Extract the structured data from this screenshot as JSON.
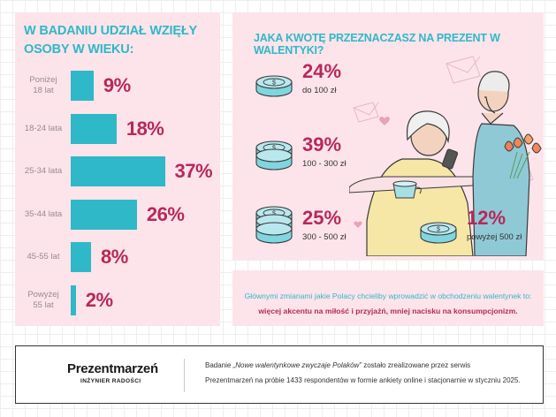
{
  "chart_data": [
    {
      "type": "bar",
      "orientation": "horizontal",
      "title": "W BADANIU UDZIAŁ WZIĘŁY OSOBY W WIEKU:",
      "categories": [
        "Poniżej 18 lat",
        "18-24 lata",
        "25-34 lata",
        "35-44 lata",
        "45-55 lat",
        "Powyżej 55 lat"
      ],
      "category_lines": [
        [
          "Poniżej",
          "18 lat"
        ],
        [
          "18-24 lata"
        ],
        [
          "25-34 lata"
        ],
        [
          "35-44 lata"
        ],
        [
          "45-55 lat"
        ],
        [
          "Powyżej",
          "55 lat"
        ]
      ],
      "values": [
        9,
        18,
        37,
        26,
        8,
        2
      ],
      "value_labels": [
        "9%",
        "18%",
        "37%",
        "26%",
        "8%",
        "2%"
      ],
      "unit": "%",
      "bar_color": "#2fb8c8",
      "label_color": "#b7285b"
    },
    {
      "type": "table",
      "title": "JAKA KWOTĘ PRZEZNACZASZ NA PREZENT W WALENTYKI?",
      "categories": [
        "do 100 zł",
        "100 - 300 zł",
        "300 - 500 zł",
        "powyżej 500 zł"
      ],
      "values": [
        24,
        39,
        25,
        12
      ],
      "value_labels": [
        "24%",
        "39%",
        "25%",
        "12%"
      ],
      "unit": "%"
    }
  ],
  "note": {
    "line1": "Głównymi zmianami jakie Polacy chcieliby wprowadzić w obchodzeniu walentynek to:",
    "line2": "więcej akcentu na miłość i przyjaźń, mniej nacisku na konsumpcjonizm."
  },
  "footer": {
    "brand": "Prezentmarzeń",
    "tagline": "INŻYNIER RADOŚCI",
    "text1_prefix": "Badanie ",
    "text1_title": "„Nowe walentynkowe zwyczaje Polaków”",
    "text1_suffix": " zostało zrealizowane przez serwis",
    "text2": "Prezentmarzeń na próbie 1433 respondentów w formie ankiety online i stacjonarnie w styczniu 2025."
  },
  "colors": {
    "panel": "#fce4ea",
    "accent_teal": "#2fb8c8",
    "accent_magenta": "#b7285b",
    "coin_fill": "#7fd6df"
  },
  "illustration": "couple-with-flowers-illustration"
}
